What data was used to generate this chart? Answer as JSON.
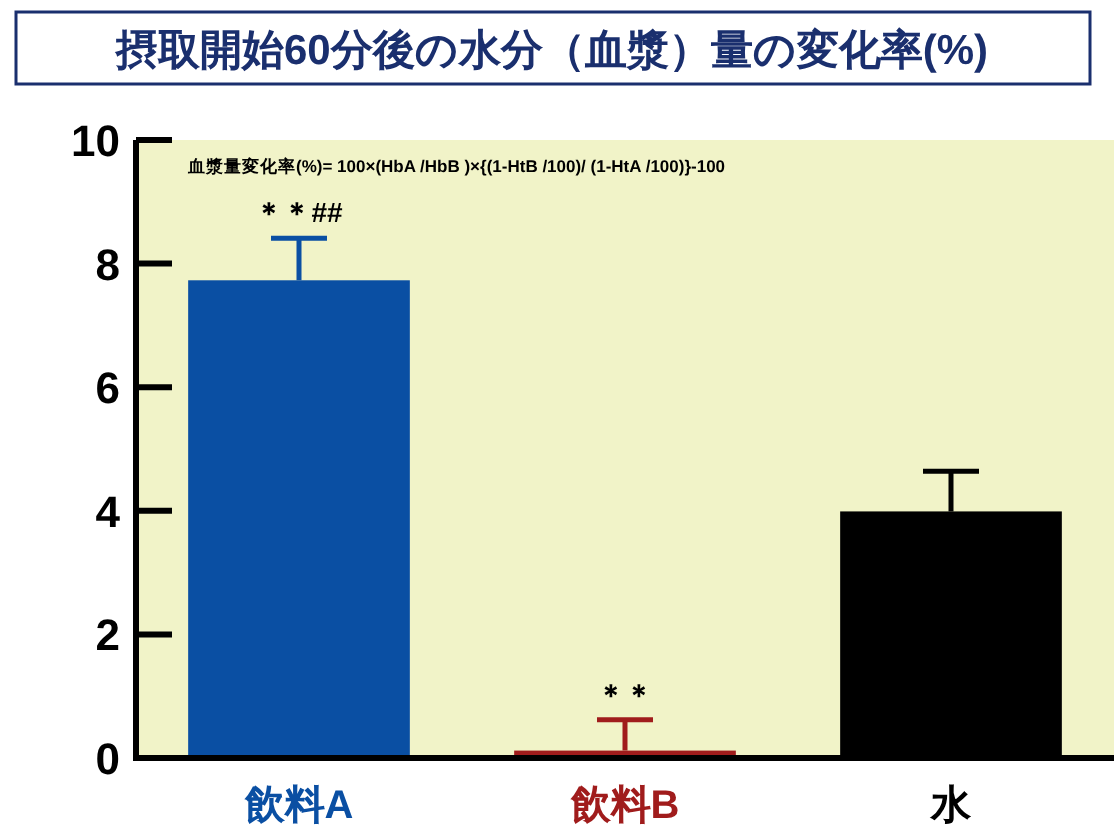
{
  "chart_data": {
    "type": "bar",
    "title": "摂取開始60分後の水分（血漿）量の変化率(%)",
    "categories": [
      "飲料A",
      "飲料B",
      "水"
    ],
    "values": [
      7.73,
      0.12,
      3.99
    ],
    "colors": [
      "#0a4fa3",
      "#a01c1c",
      "#000000"
    ],
    "errors": [
      0.68,
      0.5,
      0.65
    ],
    "ylim": [
      0,
      10
    ],
    "yticks": [
      0,
      2,
      4,
      6,
      8,
      10
    ],
    "grid": false,
    "annotations": [
      "血漿量変化率(%)= 100×(HbA /HbB )×{(1-HtB /100)/ (1-HtA /100)}-100",
      {
        "text": "＊＊##",
        "x": "飲料A",
        "y": 8.41
      },
      {
        "text": "＊＊",
        "x": "飲料B",
        "y": 0.62
      }
    ]
  }
}
